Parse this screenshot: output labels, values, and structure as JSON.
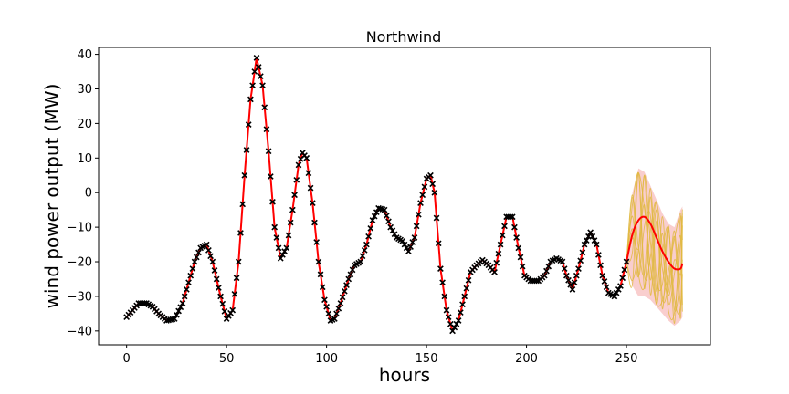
{
  "chart_data": {
    "type": "line",
    "title": "Northwind",
    "xlabel": "hours",
    "ylabel": "wind power output (MW)",
    "xlim": [
      -14,
      292
    ],
    "ylim": [
      -44,
      42
    ],
    "xticks": [
      0,
      50,
      100,
      150,
      200,
      250
    ],
    "yticks": [
      -40,
      -30,
      -20,
      -10,
      0,
      10,
      20,
      30,
      40
    ],
    "grid": false,
    "colors": {
      "observed": "#000000",
      "fit": "#ff0000",
      "band": "#f4a6a6",
      "samples": "#e0b840"
    },
    "knots": [
      [
        0,
        -36
      ],
      [
        3,
        -34
      ],
      [
        6,
        -32
      ],
      [
        10,
        -32
      ],
      [
        13,
        -33
      ],
      [
        16,
        -35
      ],
      [
        20,
        -37
      ],
      [
        24,
        -36.5
      ],
      [
        28,
        -32
      ],
      [
        31,
        -26
      ],
      [
        34,
        -20
      ],
      [
        37,
        -16
      ],
      [
        40,
        -15
      ],
      [
        43,
        -20
      ],
      [
        47,
        -30
      ],
      [
        50,
        -36.5
      ],
      [
        53,
        -34
      ],
      [
        56,
        -20
      ],
      [
        59,
        5
      ],
      [
        62,
        27
      ],
      [
        65,
        39
      ],
      [
        68,
        31
      ],
      [
        71,
        12
      ],
      [
        74,
        -10
      ],
      [
        77,
        -19
      ],
      [
        80,
        -16
      ],
      [
        83,
        -5
      ],
      [
        86,
        8
      ],
      [
        88,
        11.5
      ],
      [
        90,
        10
      ],
      [
        93,
        -3
      ],
      [
        96,
        -20
      ],
      [
        99,
        -31
      ],
      [
        102,
        -37
      ],
      [
        104,
        -36.5
      ],
      [
        107,
        -32
      ],
      [
        111,
        -25
      ],
      [
        114,
        -21
      ],
      [
        117,
        -20
      ],
      [
        120,
        -15
      ],
      [
        123,
        -8
      ],
      [
        126,
        -4.5
      ],
      [
        129,
        -5
      ],
      [
        132,
        -10
      ],
      [
        135,
        -13
      ],
      [
        138,
        -14
      ],
      [
        141,
        -17
      ],
      [
        144,
        -13
      ],
      [
        147,
        -3
      ],
      [
        150,
        4
      ],
      [
        152,
        5
      ],
      [
        154,
        0
      ],
      [
        157,
        -22
      ],
      [
        160,
        -34
      ],
      [
        163,
        -40
      ],
      [
        166,
        -37
      ],
      [
        169,
        -30
      ],
      [
        172,
        -23
      ],
      [
        175,
        -21
      ],
      [
        178,
        -19.5
      ],
      [
        181,
        -21
      ],
      [
        184,
        -23
      ],
      [
        187,
        -15
      ],
      [
        190,
        -7
      ],
      [
        193,
        -7
      ],
      [
        196,
        -16
      ],
      [
        199,
        -24
      ],
      [
        202,
        -25.5
      ],
      [
        206,
        -25.5
      ],
      [
        209,
        -24
      ],
      [
        212,
        -20
      ],
      [
        215,
        -19
      ],
      [
        218,
        -20
      ],
      [
        220,
        -24
      ],
      [
        223,
        -28
      ],
      [
        226,
        -22
      ],
      [
        229,
        -15
      ],
      [
        232,
        -11.5
      ],
      [
        235,
        -15
      ],
      [
        238,
        -24
      ],
      [
        241,
        -29
      ],
      [
        244,
        -30
      ],
      [
        247,
        -27
      ],
      [
        250,
        -20
      ]
    ],
    "forecast": {
      "x": [
        250,
        253,
        256,
        259,
        262,
        265,
        268,
        271,
        274,
        277,
        278
      ],
      "mean": [
        -20,
        -12,
        -8,
        -7,
        -9,
        -13,
        -17,
        -20,
        -22,
        -22,
        -20.5
      ],
      "upper": [
        -20,
        0,
        7,
        6,
        2,
        -2,
        -6,
        -9,
        -10,
        -5,
        -4
      ],
      "lower": [
        -20,
        -27,
        -30,
        -30,
        -31,
        -33,
        -35,
        -37,
        -38.5,
        -37,
        -36
      ]
    }
  }
}
